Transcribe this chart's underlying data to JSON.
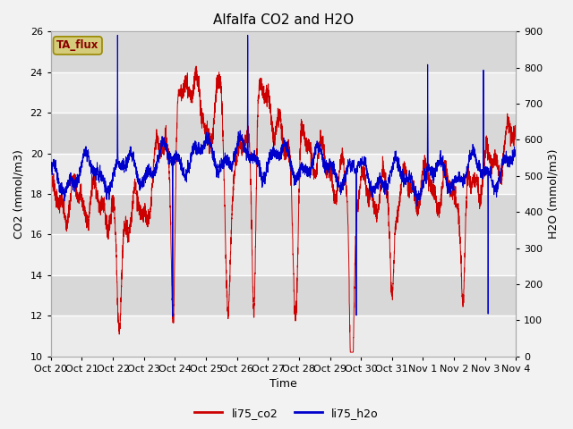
{
  "title": "Alfalfa CO2 and H2O",
  "xlabel": "Time",
  "ylabel_left": "CO2 (mmol/m3)",
  "ylabel_right": "H2O (mmol/m3)",
  "ylim_left": [
    10,
    26
  ],
  "ylim_right": [
    0,
    900
  ],
  "yticks_left": [
    10,
    12,
    14,
    16,
    18,
    20,
    22,
    24,
    26
  ],
  "yticks_right": [
    0,
    100,
    200,
    300,
    400,
    500,
    600,
    700,
    800,
    900
  ],
  "xtick_labels": [
    "Oct 20",
    "Oct 21",
    "Oct 22",
    "Oct 23",
    "Oct 24",
    "Oct 25",
    "Oct 26",
    "Oct 27",
    "Oct 28",
    "Oct 29",
    "Oct 30",
    "Oct 31",
    "Nov 1",
    "Nov 2",
    "Nov 3",
    "Nov 4"
  ],
  "legend_labels": [
    "li75_co2",
    "li75_h2o"
  ],
  "legend_colors": [
    "#cc0000",
    "#0000cc"
  ],
  "annotation_text": "TA_flux",
  "annotation_bg": "#d4cc7a",
  "annotation_border": "#998800",
  "plot_bg_light": "#ebebeb",
  "plot_bg_dark": "#d8d8d8",
  "line_color_co2": "#cc0000",
  "line_color_h2o": "#0000cc",
  "title_fontsize": 11,
  "axis_label_fontsize": 9,
  "tick_fontsize": 8
}
